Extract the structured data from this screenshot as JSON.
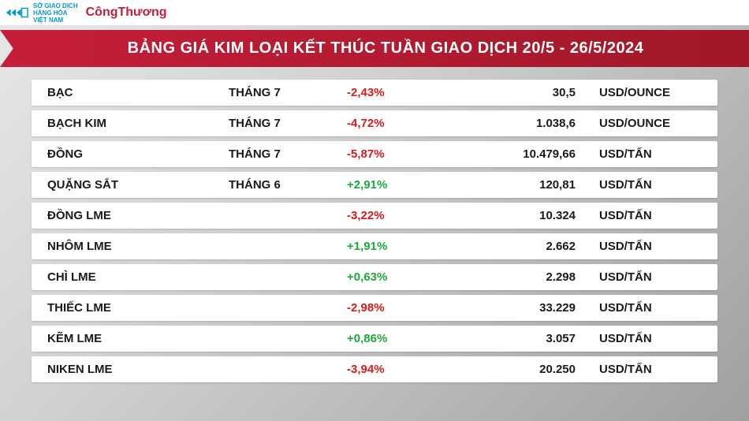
{
  "header": {
    "sgd_lines": [
      "SỞ GIAO DỊCH",
      "HÀNG HÓA",
      "VIỆT NAM"
    ],
    "congthuong": "CôngThương"
  },
  "title": "BẢNG GIÁ KIM LOẠI KẾT THÚC TUẦN GIAO DỊCH 20/5 - 26/5/2024",
  "colors": {
    "brand_red": "#c41e3a",
    "positive": "#1aaa3a",
    "negative": "#d81b1b",
    "sgd_blue": "#0099cc",
    "row_bg": "#ffffff"
  },
  "rows": [
    {
      "name": "BẠC",
      "month": "THÁNG 7",
      "change": "-2,43%",
      "dir": "neg",
      "price": "30,5",
      "unit": "USD/OUNCE"
    },
    {
      "name": "BẠCH KIM",
      "month": "THÁNG 7",
      "change": "-4,72%",
      "dir": "neg",
      "price": "1.038,6",
      "unit": "USD/OUNCE"
    },
    {
      "name": "ĐỒNG",
      "month": "THÁNG 7",
      "change": "-5,87%",
      "dir": "neg",
      "price": "10.479,66",
      "unit": "USD/TẤN"
    },
    {
      "name": "QUẶNG SẮT",
      "month": "THÁNG 6",
      "change": "+2,91%",
      "dir": "pos",
      "price": "120,81",
      "unit": "USD/TẤN"
    },
    {
      "name": "ĐỒNG LME",
      "month": "",
      "change": "-3,22%",
      "dir": "neg",
      "price": "10.324",
      "unit": "USD/TẤN"
    },
    {
      "name": "NHÔM LME",
      "month": "",
      "change": "+1,91%",
      "dir": "pos",
      "price": "2.662",
      "unit": "USD/TẤN"
    },
    {
      "name": "CHÌ LME",
      "month": "",
      "change": "+0,63%",
      "dir": "pos",
      "price": "2.298",
      "unit": "USD/TẤN"
    },
    {
      "name": "THIẾC LME",
      "month": "",
      "change": "-2,98%",
      "dir": "neg",
      "price": "33.229",
      "unit": "USD/TẤN"
    },
    {
      "name": "KẼM LME",
      "month": "",
      "change": "+0,86%",
      "dir": "pos",
      "price": "3.057",
      "unit": "USD/TẤN"
    },
    {
      "name": "NIKEN LME",
      "month": "",
      "change": "-3,94%",
      "dir": "neg",
      "price": "20.250",
      "unit": "USD/TẤN"
    }
  ]
}
